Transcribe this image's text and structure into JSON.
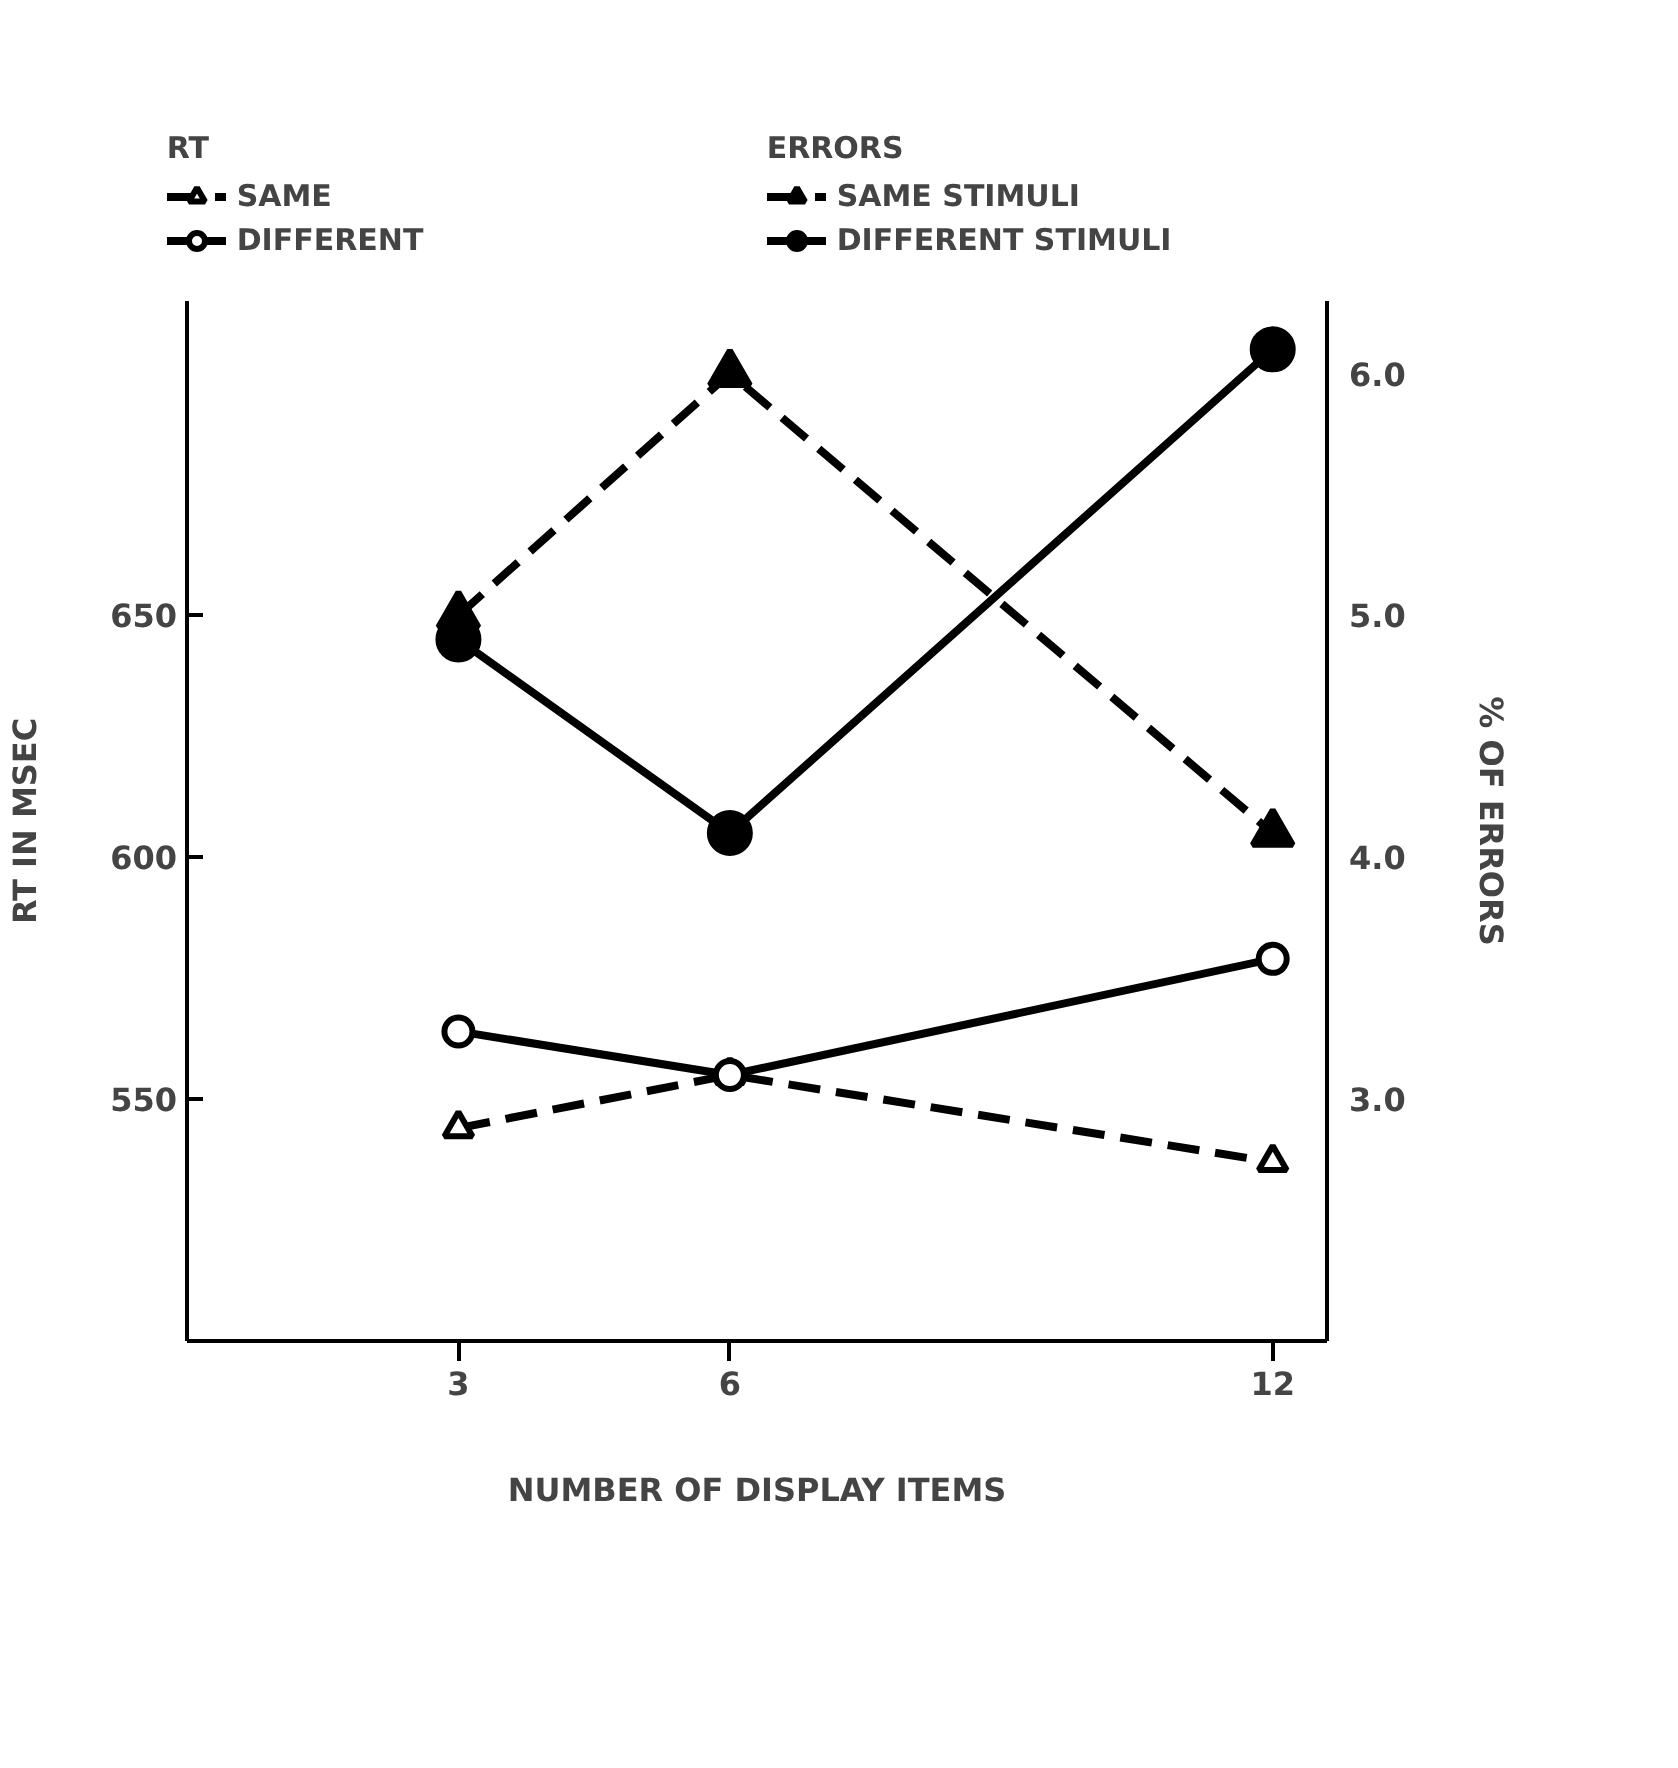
{
  "chart_data": {
    "type": "line",
    "xlabel": "NUMBER OF DISPLAY ITEMS",
    "ylabel": "RT IN MSEC",
    "y2label": "% OF ERRORS",
    "annotations": [
      "RT",
      "ERRORS"
    ],
    "x": [
      3,
      6,
      12
    ],
    "xlim": [
      0,
      12.6
    ],
    "xticks": [
      3,
      6,
      12
    ],
    "ylim": [
      500,
      715
    ],
    "yticks": [
      550,
      600,
      650
    ],
    "y2lim": [
      2.0,
      6.3
    ],
    "y2ticks": [
      {
        "value": 3.0,
        "label": "3.0"
      },
      {
        "value": 4.0,
        "label": "4.0"
      },
      {
        "value": 5.0,
        "label": "5.0"
      },
      {
        "value": 6.0,
        "label": "6.0"
      }
    ],
    "grid": false,
    "legend": "top",
    "series": [
      {
        "name": "SAME",
        "color": "#000000",
        "colors": [
          "#ffffff",
          "#ffffff",
          "#ffffff"
        ],
        "values": [
          544,
          555,
          537
        ],
        "marker": "triangle",
        "line_style": "dashed"
      },
      {
        "name": "DIFFERENT",
        "color": "#000000",
        "colors": [
          "#ffffff",
          "#ffffff",
          "#ffffff"
        ],
        "values": [
          564,
          555,
          579
        ],
        "marker": "circle",
        "line_style": "solid"
      },
      {
        "name": "SAME STIMULI",
        "color": "#000000",
        "values": [
          5.0,
          6.0,
          4.1
        ],
        "marker": "triangle",
        "line_style": "dashed",
        "axis": "y2"
      },
      {
        "name": "DIFFERENT STIMULI",
        "color": "#000000",
        "values": [
          4.9,
          4.1,
          6.1
        ],
        "marker": "circle",
        "line_style": "solid",
        "axis": "y2"
      }
    ]
  }
}
